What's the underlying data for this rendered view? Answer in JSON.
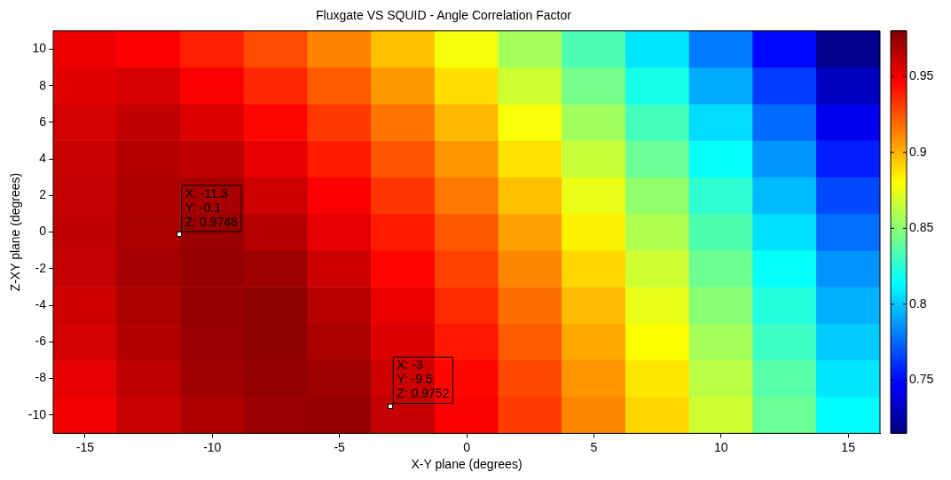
{
  "chart_data": {
    "type": "heatmap",
    "title": "Fluxgate VS SQUID - Angle Correlation Factor",
    "xlabel": "X-Y plane (degrees)",
    "ylabel": "Z-XY plane (degrees)",
    "categories": [
      "-15",
      null,
      "-10",
      null,
      "-5",
      null,
      "0",
      null,
      "5",
      null,
      "10",
      null,
      "15"
    ],
    "y_categories": [
      "10",
      "8",
      "6",
      "4",
      "2",
      "0",
      "-2",
      "-4",
      "-6",
      "-8",
      "-10"
    ],
    "cells": [
      [
        0.951,
        0.948,
        0.939,
        0.927,
        0.913,
        0.897,
        0.878,
        0.857,
        0.834,
        0.808,
        0.78,
        0.75,
        0.718
      ],
      [
        0.955,
        0.957,
        0.948,
        0.937,
        0.923,
        0.907,
        0.889,
        0.868,
        0.845,
        0.82,
        0.793,
        0.764,
        0.732
      ],
      [
        0.958,
        0.963,
        0.956,
        0.945,
        0.932,
        0.917,
        0.899,
        0.879,
        0.856,
        0.832,
        0.805,
        0.776,
        0.744
      ],
      [
        0.961,
        0.966,
        0.964,
        0.953,
        0.94,
        0.925,
        0.908,
        0.888,
        0.866,
        0.842,
        0.816,
        0.787,
        0.756
      ],
      [
        0.962,
        0.968,
        0.97,
        0.96,
        0.948,
        0.933,
        0.916,
        0.897,
        0.875,
        0.852,
        0.826,
        0.797,
        0.767
      ],
      [
        0.963,
        0.969,
        0.973,
        0.966,
        0.954,
        0.94,
        0.924,
        0.905,
        0.884,
        0.86,
        0.835,
        0.807,
        0.777
      ],
      [
        0.962,
        0.97,
        0.974,
        0.972,
        0.96,
        0.946,
        0.93,
        0.912,
        0.891,
        0.868,
        0.843,
        0.816,
        0.786
      ],
      [
        0.96,
        0.969,
        0.974,
        0.976,
        0.965,
        0.952,
        0.936,
        0.918,
        0.898,
        0.875,
        0.85,
        0.823,
        0.794
      ],
      [
        0.958,
        0.967,
        0.973,
        0.976,
        0.969,
        0.956,
        0.941,
        0.923,
        0.903,
        0.881,
        0.857,
        0.83,
        0.801
      ],
      [
        0.954,
        0.964,
        0.971,
        0.975,
        0.972,
        0.96,
        0.945,
        0.928,
        0.908,
        0.887,
        0.863,
        0.837,
        0.808
      ],
      [
        0.95,
        0.961,
        0.968,
        0.973,
        0.974,
        0.962,
        0.948,
        0.931,
        0.912,
        0.891,
        0.868,
        0.842,
        0.814
      ]
    ],
    "clim": [
      0.715,
      0.98
    ],
    "cticks": [
      0.75,
      0.8,
      0.85,
      0.9,
      0.95
    ],
    "annotations": [
      "X: -11.3\nY: -0.1\nZ: 0.9748",
      "X: -3\nY: -9.5\nZ: 0.9752"
    ]
  }
}
